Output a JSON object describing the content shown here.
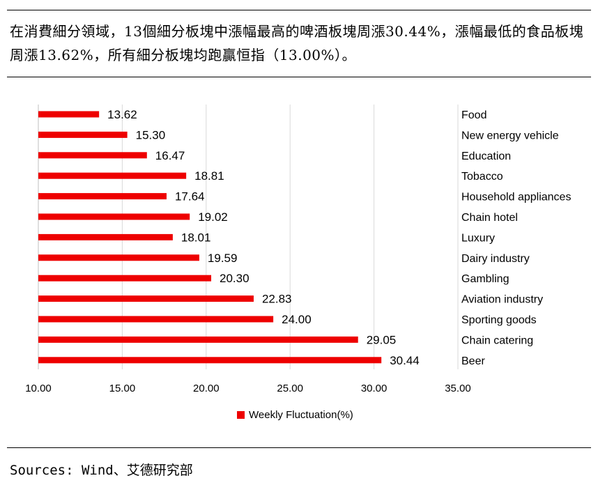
{
  "headline": "在消費細分領域，13個細分板塊中漲幅最高的啤酒板塊周漲30.44%，漲幅最低的食品板塊周漲13.62%，所有細分板塊均跑贏恒指（13.00%）。",
  "sources": "Sources: Wind、艾德研究部",
  "colors": {
    "bar": "#ee0000",
    "grid": "#d9d9d9",
    "axis": "#bfbfbf"
  },
  "chart_data": {
    "type": "bar",
    "orientation": "horizontal",
    "categories": [
      "Food",
      "New energy vehicle",
      "Education",
      "Tobacco",
      "Household appliances",
      "Chain hotel",
      "Luxury",
      "Dairy industry",
      "Gambling",
      "Aviation industry",
      "Sporting goods",
      "Chain catering",
      "Beer"
    ],
    "series": [
      {
        "name": "Weekly Fluctuation(%)",
        "values": [
          13.62,
          15.3,
          16.47,
          18.81,
          17.64,
          19.02,
          18.01,
          19.59,
          20.3,
          22.83,
          24.0,
          29.05,
          30.44
        ]
      }
    ],
    "data_labels": [
      "13.62",
      "15.30",
      "16.47",
      "18.81",
      "17.64",
      "19.02",
      "18.01",
      "19.59",
      "20.30",
      "22.83",
      "24.00",
      "29.05",
      "30.44"
    ],
    "xlim": [
      10,
      35
    ],
    "x_ticks": [
      "10.00",
      "15.00",
      "20.00",
      "25.00",
      "30.00",
      "35.00"
    ],
    "grid": "vertical",
    "legend_position": "bottom",
    "category_label_position": "right"
  }
}
